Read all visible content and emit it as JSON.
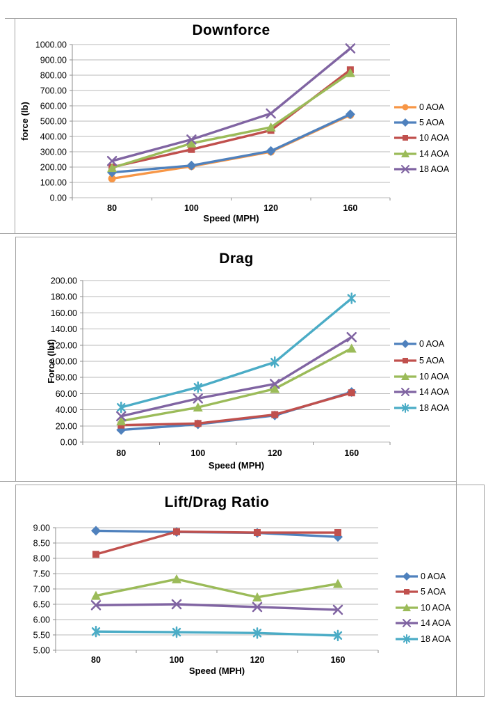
{
  "chart_data": [
    {
      "type": "line",
      "title": "Downforce",
      "ylabel": "force (lb)",
      "xlabel": "Speed (MPH)",
      "categories": [
        "80",
        "100",
        "120",
        "160"
      ],
      "ymin": 0,
      "ymax": 1000,
      "y_ticks": [
        "1000.00",
        "900.00",
        "800.00",
        "700.00",
        "600.00",
        "500.00",
        "400.00",
        "300.00",
        "200.00",
        "100.00",
        "0.00"
      ],
      "grid": true,
      "legend_position": "right",
      "series": [
        {
          "name": "0 AOA",
          "color": "#F79646",
          "marker": "circle",
          "values": [
            125,
            205,
            300,
            540
          ]
        },
        {
          "name": "5 AOA",
          "color": "#4F81BD",
          "marker": "diamond",
          "values": [
            165,
            210,
            305,
            545
          ]
        },
        {
          "name": "10 AOA",
          "color": "#C0504D",
          "marker": "square",
          "values": [
            200,
            315,
            440,
            835
          ]
        },
        {
          "name": "14 AOA",
          "color": "#9BBB59",
          "marker": "triangle",
          "values": [
            195,
            355,
            460,
            815
          ]
        },
        {
          "name": "18 AOA",
          "color": "#8064A2",
          "marker": "x",
          "values": [
            240,
            380,
            550,
            975
          ]
        }
      ]
    },
    {
      "type": "line",
      "title": "Drag",
      "ylabel": "Force (lbf)",
      "xlabel": "Speed (MPH)",
      "categories": [
        "80",
        "100",
        "120",
        "160"
      ],
      "ymin": 0,
      "ymax": 200,
      "y_ticks": [
        "200.00",
        "180.00",
        "160.00",
        "140.00",
        "120.00",
        "100.00",
        "80.00",
        "60.00",
        "40.00",
        "20.00",
        "0.00"
      ],
      "grid": true,
      "legend_position": "right",
      "series": [
        {
          "name": "0 AOA",
          "color": "#4F81BD",
          "marker": "diamond",
          "values": [
            15,
            22,
            33,
            62
          ]
        },
        {
          "name": "5 AOA",
          "color": "#C0504D",
          "marker": "square",
          "values": [
            21,
            23,
            34,
            61
          ]
        },
        {
          "name": "10 AOA",
          "color": "#9BBB59",
          "marker": "triangle",
          "values": [
            26,
            43,
            66,
            116
          ]
        },
        {
          "name": "14 AOA",
          "color": "#8064A2",
          "marker": "x",
          "values": [
            32,
            54,
            72,
            130
          ]
        },
        {
          "name": "18 AOA",
          "color": "#4BACC6",
          "marker": "star",
          "values": [
            43,
            68,
            99,
            178
          ]
        }
      ]
    },
    {
      "type": "line",
      "title": "Lift/Drag Ratio",
      "ylabel": "",
      "xlabel": "Speed (MPH)",
      "categories": [
        "80",
        "100",
        "120",
        "160"
      ],
      "ymin": 5,
      "ymax": 9,
      "y_ticks": [
        "9.00",
        "8.50",
        "8.00",
        "7.50",
        "7.00",
        "6.50",
        "6.00",
        "5.50",
        "5.00"
      ],
      "grid": true,
      "legend_position": "right",
      "series": [
        {
          "name": "0 AOA",
          "color": "#4F81BD",
          "marker": "diamond",
          "values": [
            8.9,
            8.86,
            8.83,
            8.7
          ]
        },
        {
          "name": "5 AOA",
          "color": "#C0504D",
          "marker": "square",
          "values": [
            8.13,
            8.87,
            8.84,
            8.84
          ]
        },
        {
          "name": "10 AOA",
          "color": "#9BBB59",
          "marker": "triangle",
          "values": [
            6.78,
            7.32,
            6.73,
            7.17
          ]
        },
        {
          "name": "14 AOA",
          "color": "#8064A2",
          "marker": "x",
          "values": [
            6.47,
            6.5,
            6.41,
            6.32
          ]
        },
        {
          "name": "18 AOA",
          "color": "#4BACC6",
          "marker": "star",
          "values": [
            5.61,
            5.59,
            5.56,
            5.48
          ]
        }
      ]
    }
  ],
  "colors": {
    "blue": "#4F81BD",
    "red": "#C0504D",
    "green": "#9BBB59",
    "purple": "#8064A2",
    "cyan": "#4BACC6",
    "orange": "#F79646",
    "gridline": "#b9b9b9",
    "axis": "#8e8e8e",
    "box_border": "#a3a3a3"
  }
}
